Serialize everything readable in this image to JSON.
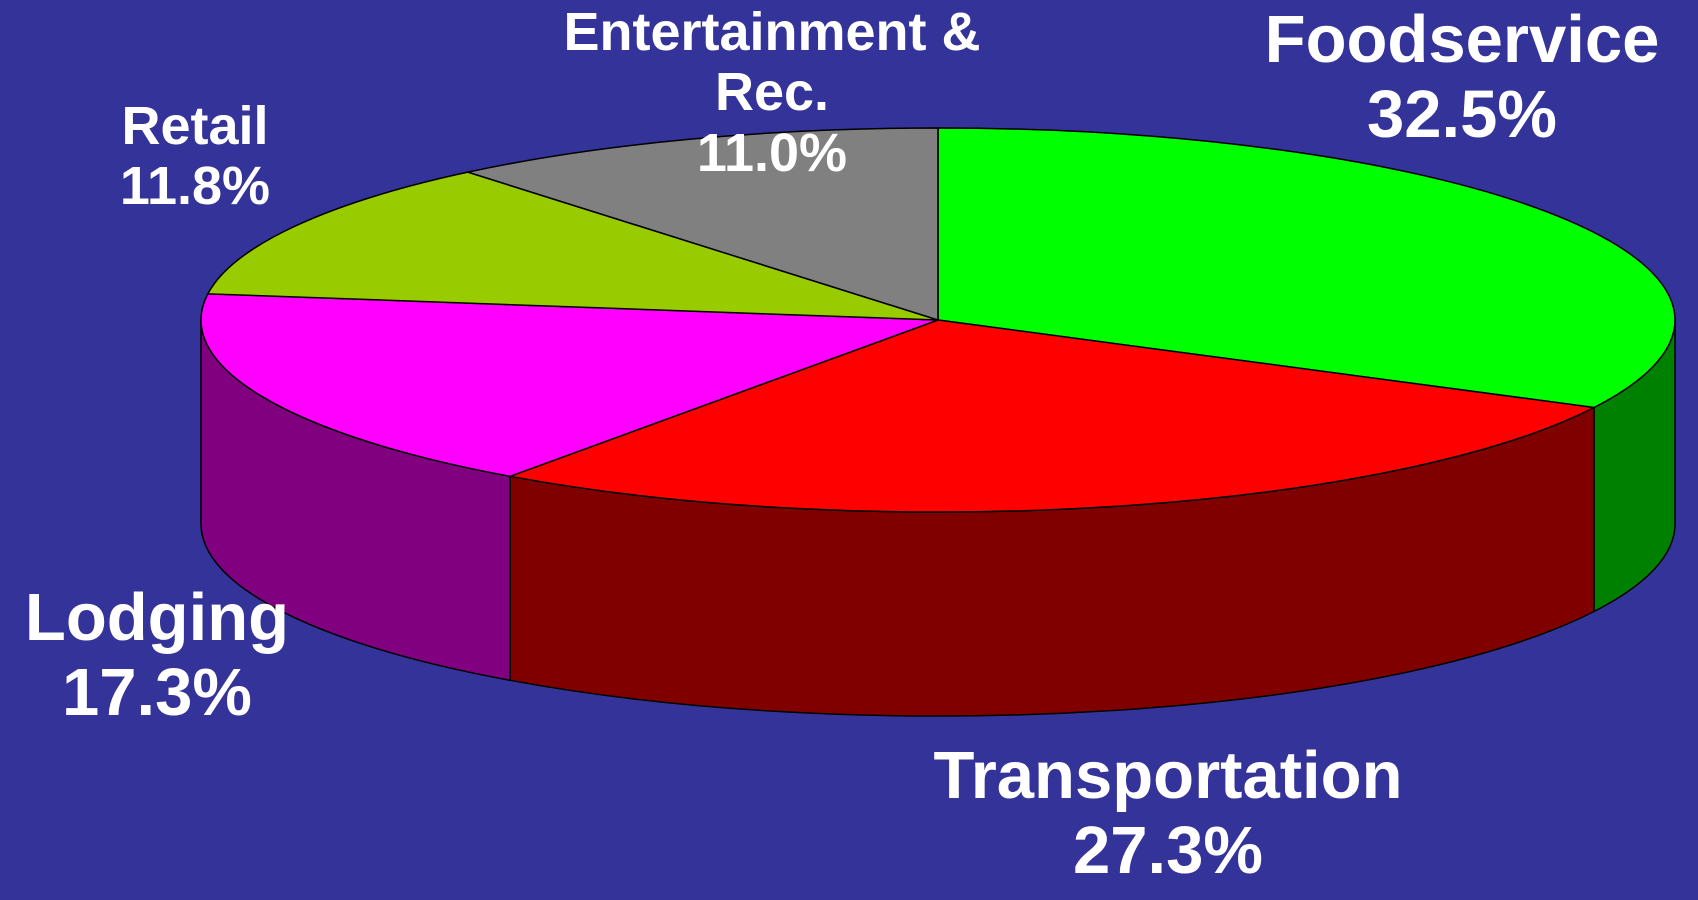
{
  "chart_data": {
    "type": "pie3d",
    "categories": [
      "Foodservice",
      "Transportation",
      "Lodging",
      "Retail",
      "Entertainment & Rec."
    ],
    "values": [
      32.5,
      27.3,
      17.3,
      11.8,
      11.0
    ],
    "value_labels": [
      "32.5%",
      "27.3%",
      "17.3%",
      "11.8%",
      "11.0%"
    ],
    "colors": [
      "#00ff00",
      "#ff0000",
      "#ff00ff",
      "#99cc00",
      "#808080"
    ],
    "side_colors": [
      "#008000",
      "#800000",
      "#800080",
      "#4d6600",
      "#404040"
    ]
  }
}
